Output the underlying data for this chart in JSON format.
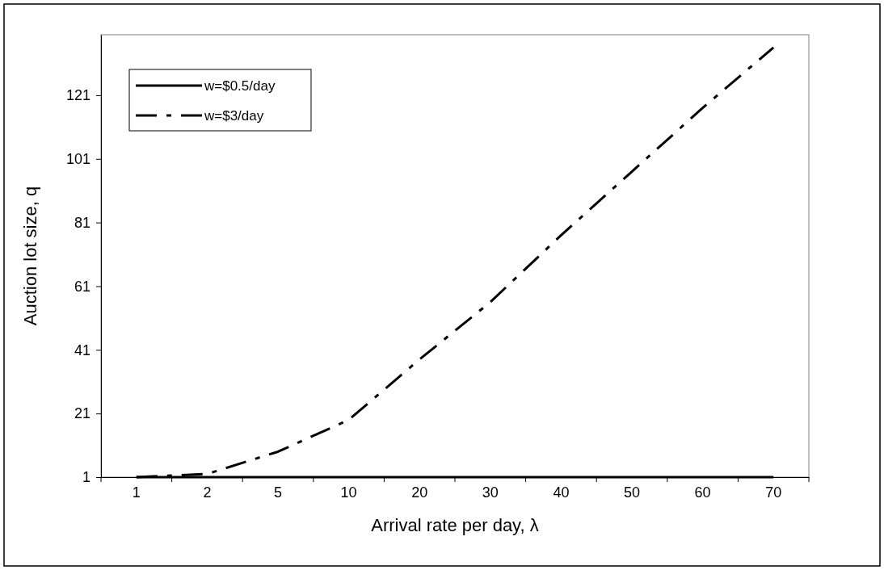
{
  "chart_data": {
    "type": "line",
    "xlabel": "Arrival rate per day, λ",
    "ylabel": "Auction lot size, q",
    "categories": [
      "1",
      "2",
      "5",
      "10",
      "20",
      "30",
      "40",
      "50",
      "60",
      "70"
    ],
    "series": [
      {
        "name": "w=$0.5/day",
        "color": "#000000",
        "line_style": "solid",
        "values": [
          1,
          1,
          1,
          1,
          1,
          1,
          1,
          1,
          1,
          1
        ]
      },
      {
        "name": "w=$3/day",
        "color": "#000000",
        "line_style": "dashed",
        "values": [
          1,
          2,
          9,
          19,
          38,
          56,
          77,
          97,
          117,
          136
        ]
      }
    ],
    "ylim": [
      1,
      140
    ],
    "yticks": [
      1,
      21,
      41,
      61,
      81,
      101,
      121
    ],
    "grid": false,
    "legend": "top left",
    "marker": "none"
  }
}
